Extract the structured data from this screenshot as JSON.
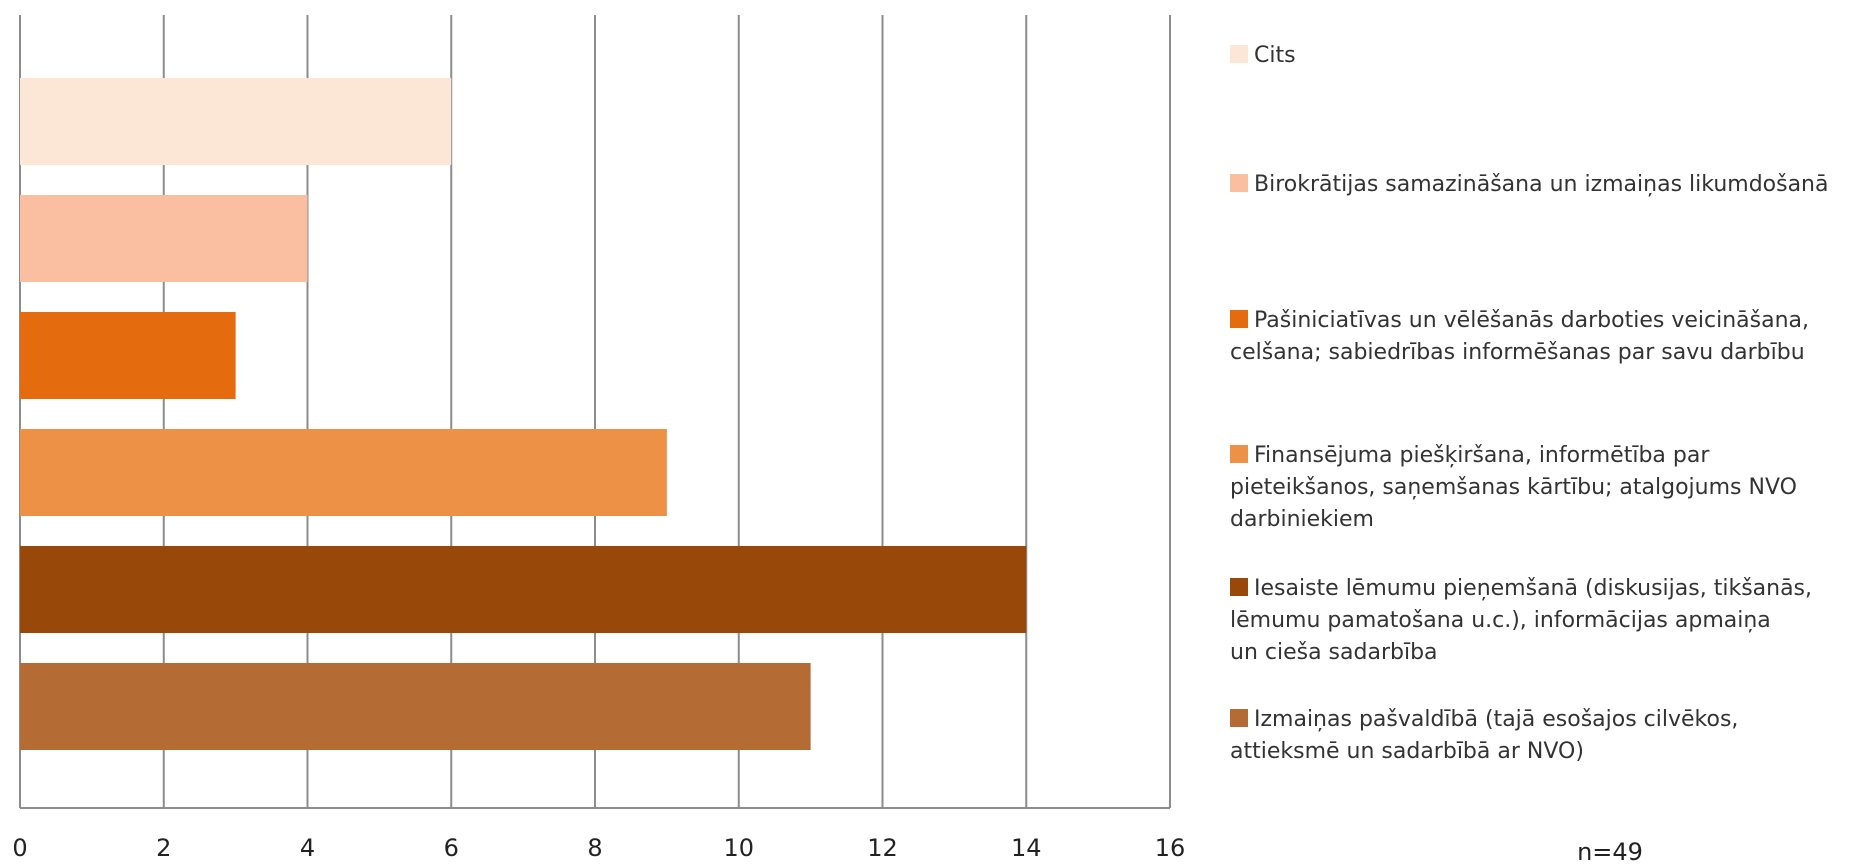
{
  "chart_data": {
    "type": "bar",
    "orientation": "horizontal",
    "title": "",
    "xlabel": "",
    "ylabel": "",
    "xlim": [
      0,
      16
    ],
    "x_ticks": [
      0,
      2,
      4,
      6,
      8,
      10,
      12,
      14,
      16
    ],
    "grid": "vertical",
    "legend_position": "right",
    "note": "n=49",
    "categories": [
      {
        "label": "Cits",
        "lines": [
          "Cits"
        ],
        "value": 6,
        "color": "#fce6d5"
      },
      {
        "label": "Birokrātijas samazināšana un izmaiņas likumdošanā",
        "lines": [
          "Birokrātijas samazināšana un izmaiņas likumdošanā"
        ],
        "value": 4,
        "color": "#f9bfa0"
      },
      {
        "label": "Pašiniciatīvas un vēlēšanās darboties veicināšana, celšana; sabiedrības informēšanas par savu darbību",
        "lines": [
          "Pašiniciatīvas un vēlēšanās darboties veicināšana,",
          "celšana; sabiedrības informēšanas par savu darbību"
        ],
        "value": 3,
        "color": "#e46c0e"
      },
      {
        "label": "Finansējuma piešķiršana, informētība par pieteikšanos, saņemšanas kārtību; atalgojums NVO darbiniekiem",
        "lines": [
          "Finansējuma piešķiršana, informētība par",
          "pieteikšanos, saņemšanas kārtību; atalgojums NVO",
          "darbiniekiem"
        ],
        "value": 9,
        "color": "#ec9146"
      },
      {
        "label": "Iesaiste lēmumu pieņemšanā (diskusijas, tikšanās, lēmumu pamatošana u.c.), informācijas apmaiņa un cieša sadarbība",
        "lines": [
          "Iesaiste lēmumu pieņemšanā (diskusijas, tikšanās,",
          "lēmumu pamatošana u.c.), informācijas apmaiņa",
          "un cieša sadarbība"
        ],
        "value": 14,
        "color": "#984808"
      },
      {
        "label": "Izmaiņas pašvaldībā (tajā esošajos cilvēkos, attieksmē un sadarbībā ar NVO)",
        "lines": [
          "Izmaiņas pašvaldībā (tajā esošajos cilvēkos,",
          "attieksmē un sadarbībā ar NVO)"
        ],
        "value": 11,
        "color": "#b56c34"
      }
    ]
  }
}
